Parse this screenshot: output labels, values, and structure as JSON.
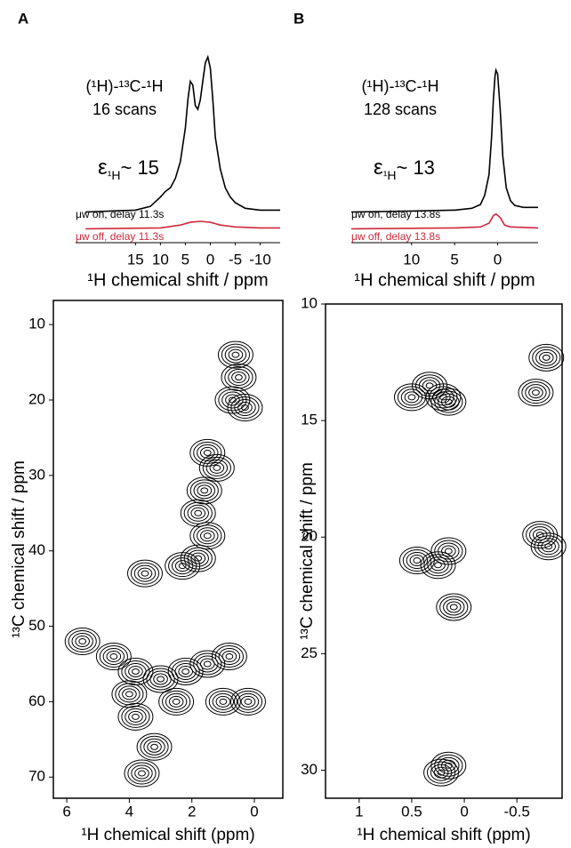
{
  "chart_data": [
    {
      "type": "line",
      "panel_label": "A",
      "title": "(¹H)-¹³C-¹H",
      "subtitle": "16 scans",
      "annotation": {
        "symbol": "ε",
        "subscript": "¹H",
        "text": "~ 15"
      },
      "xlabel": "¹H chemical shift / ppm",
      "xlim": [
        27,
        -14
      ],
      "xticks": [
        15,
        10,
        5,
        0,
        -5,
        -10
      ],
      "ylim": [
        0,
        100
      ],
      "series": [
        {
          "name": "μw on, delay 11.3s",
          "color": "#000000",
          "x": [
            25,
            20,
            15,
            12,
            10,
            9,
            8,
            7,
            6,
            5,
            4.5,
            4,
            3.5,
            3,
            2.5,
            2,
            1.5,
            1,
            0.5,
            0,
            -0.5,
            -1,
            -2,
            -3,
            -4,
            -5,
            -7,
            -10,
            -14
          ],
          "values": [
            15,
            15.5,
            16,
            18,
            23,
            26,
            28,
            33,
            42,
            60,
            75,
            85,
            83,
            72,
            70,
            75,
            85,
            95,
            98,
            92,
            75,
            55,
            38,
            28,
            23,
            20,
            17,
            16,
            16
          ]
        },
        {
          "name": "μw off, delay 11.3s",
          "color": "#d0283c",
          "x": [
            25,
            10,
            6,
            4,
            2,
            0,
            -2,
            -5,
            -10,
            -14
          ],
          "values": [
            6,
            6.5,
            8,
            9.5,
            10,
            9.5,
            8,
            7,
            6.5,
            6.5
          ]
        }
      ]
    },
    {
      "type": "line",
      "panel_label": "B",
      "title": "(¹H)-¹³C-¹H",
      "subtitle": "128 scans",
      "annotation": {
        "symbol": "ε",
        "subscript": "¹H",
        "text": "~ 13"
      },
      "xlabel": "¹H chemical shift / ppm",
      "xlim": [
        17,
        -4.7
      ],
      "xticks": [
        10,
        5,
        0
      ],
      "ylim": [
        0,
        100
      ],
      "series": [
        {
          "name": "μw on, delay 13.8s",
          "color": "#000000",
          "x": [
            17,
            10,
            5,
            3,
            2,
            1.5,
            1,
            0.7,
            0.5,
            0.3,
            0.2,
            0,
            -0.3,
            -0.6,
            -1,
            -1.5,
            -2,
            -3,
            -4.7
          ],
          "values": [
            15,
            15.5,
            16,
            17,
            19,
            24,
            35,
            55,
            75,
            88,
            91,
            89,
            70,
            45,
            28,
            21,
            18.5,
            17.5,
            17.5
          ]
        },
        {
          "name": "μw off, delay 13.8s",
          "color": "#d0283c",
          "x": [
            17,
            5,
            2,
            1,
            0.5,
            0.2,
            -0.3,
            -0.8,
            -1.5,
            -4.7
          ],
          "values": [
            6,
            6.5,
            7,
            9,
            13,
            14,
            12,
            8,
            7,
            6.5
          ]
        }
      ]
    },
    {
      "type": "contour",
      "xlabel": "¹H  chemical shift (ppm)",
      "ylabel": "¹³C chemical shift / ppm",
      "xlim": [
        6.43,
        -0.91
      ],
      "xticks": [
        6,
        4,
        2,
        0
      ],
      "ylim": [
        6.8,
        72.8
      ],
      "yticks": [
        10,
        20,
        30,
        40,
        50,
        60,
        70
      ],
      "color": "#000000",
      "series": [
        {
          "x": [
            0.6,
            0.5,
            0.7,
            0.3,
            1.5,
            1.2,
            1.6,
            1.8,
            1.5,
            1.8,
            2.3,
            3.5,
            5.5,
            4.5,
            3.8,
            3,
            2.2,
            1.5,
            0.8,
            4,
            2.5,
            1,
            3.8,
            0.2,
            3.2,
            3.6
          ],
          "values": [
            14,
            17,
            20,
            21,
            27,
            29,
            32,
            35,
            38,
            41,
            42,
            43,
            52,
            54,
            56,
            57,
            56,
            55,
            54,
            59,
            60,
            60,
            62,
            60,
            66,
            69.5
          ]
        }
      ]
    },
    {
      "type": "contour",
      "xlabel": "¹H chemical shift (ppm)",
      "ylabel": "¹³C chemical shift / ppm",
      "xlim": [
        1.32,
        -0.93
      ],
      "xticks": [
        1,
        0.5,
        0,
        -0.5
      ],
      "ylim": [
        10,
        31.2
      ],
      "yticks": [
        10,
        15,
        20,
        25,
        30
      ],
      "color": "#000000",
      "series": [
        {
          "x": [
            0.33,
            0.5,
            0.2,
            0.15,
            0.45,
            0.25,
            0.15,
            0.1,
            0.15,
            0.22,
            -0.78,
            -0.68,
            -0.72,
            -0.8
          ],
          "values": [
            13.5,
            14,
            14,
            14.2,
            21,
            21.2,
            20.6,
            23,
            29.8,
            30.1,
            12.3,
            13.8,
            19.9,
            20.4
          ]
        }
      ]
    }
  ]
}
